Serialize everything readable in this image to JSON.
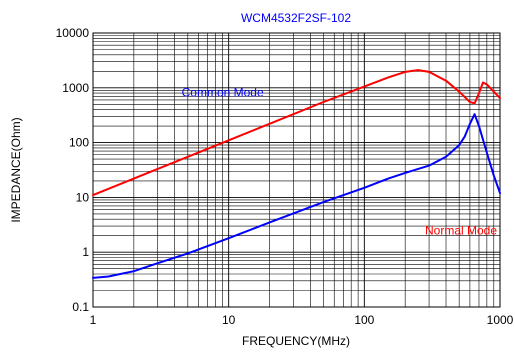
{
  "chart_data": {
    "type": "line",
    "title": "WCM4532F2SF-102",
    "xlabel": "FREQUENCY(MHz)",
    "ylabel": "IMPEDANCE(Ohm)",
    "x_scale": "log",
    "y_scale": "log",
    "xlim": [
      1,
      1000
    ],
    "ylim": [
      0.1,
      10000
    ],
    "x_ticks": [
      1,
      10,
      100,
      1000
    ],
    "x_tick_labels": [
      "1",
      "10",
      "100",
      "1000"
    ],
    "y_ticks": [
      0.1,
      1,
      10,
      100,
      1000,
      10000
    ],
    "y_tick_labels": [
      "0.1",
      "1",
      "10",
      "100",
      "1000",
      "10000"
    ],
    "grid": true,
    "legend": "none",
    "colors": {
      "title": "#0000ff",
      "common_mode": "#ff0000",
      "normal_mode": "#0000ff",
      "grid": "#000000"
    },
    "annotations": [
      {
        "text": "Common Mode",
        "color": "#0000ff",
        "x": 4.5,
        "y": 700
      },
      {
        "text": "Normal Mode",
        "color": "#ff0000",
        "x": 280,
        "y": 2.1
      }
    ],
    "series": [
      {
        "color": "#ff0000",
        "x": [
          1,
          2,
          5,
          10,
          20,
          50,
          100,
          150,
          200,
          250,
          300,
          400,
          500,
          600,
          650,
          700,
          750,
          800,
          900,
          1000
        ],
        "y": [
          11,
          22,
          55,
          110,
          220,
          550,
          1050,
          1550,
          1950,
          2100,
          1950,
          1350,
          850,
          550,
          520,
          800,
          1250,
          1150,
          850,
          650
        ]
      },
      {
        "color": "#0000ff",
        "x": [
          1,
          1.3,
          2,
          3,
          5,
          10,
          20,
          50,
          100,
          150,
          200,
          300,
          400,
          500,
          550,
          600,
          650,
          700,
          800,
          900,
          1000
        ],
        "y": [
          0.34,
          0.36,
          0.45,
          0.63,
          0.95,
          1.8,
          3.5,
          8.2,
          15,
          22,
          28,
          38,
          55,
          90,
          130,
          220,
          330,
          200,
          65,
          25,
          12
        ]
      }
    ]
  }
}
